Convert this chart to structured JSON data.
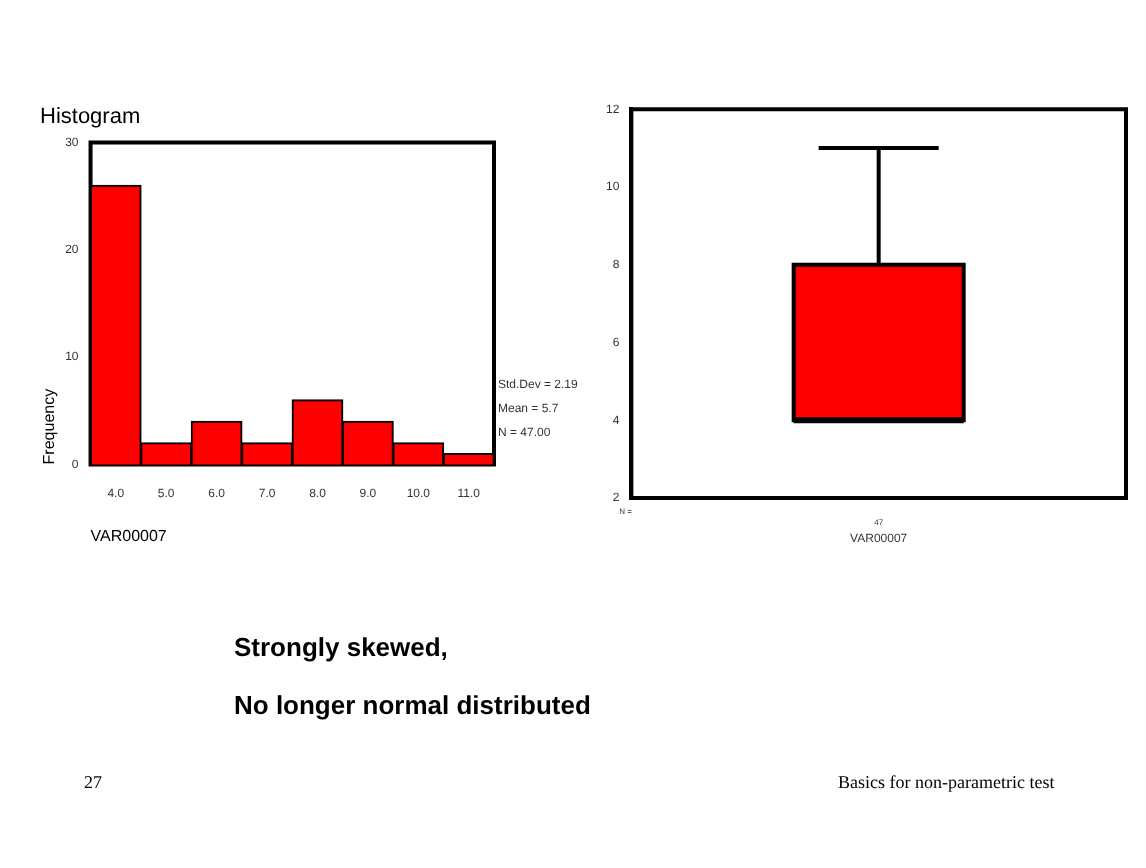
{
  "chart_data": [
    {
      "type": "histogram",
      "title": "Histogram",
      "xlabel": "VAR00007",
      "ylabel": "Frequency",
      "bins": [
        3.5,
        4.5,
        5.5,
        6.5,
        7.5,
        8.5,
        9.5,
        10.5,
        11.5
      ],
      "values": [
        26,
        2,
        4,
        2,
        6,
        4,
        2,
        1
      ],
      "color": "#ff0000",
      "xlim": [
        3.5,
        11.5
      ],
      "xticks": [
        {
          "value": 4,
          "label": "4.0"
        },
        {
          "value": 5,
          "label": "5.0"
        },
        {
          "value": 6,
          "label": "6.0"
        },
        {
          "value": 7,
          "label": "7.0"
        },
        {
          "value": 8,
          "label": "8.0"
        },
        {
          "value": 9,
          "label": "9.0"
        },
        {
          "value": 10,
          "label": "10.0"
        },
        {
          "value": 11,
          "label": "11.0"
        }
      ],
      "ylim": [
        0,
        30
      ],
      "yticks": [
        0,
        10,
        20,
        30
      ],
      "grid": false,
      "legend": false,
      "annotations": [
        "Std.Dev = 2.19",
        "Mean = 5.7",
        "N = 47.00"
      ]
    },
    {
      "type": "box",
      "xlabel": "VAR00007",
      "categories": [
        "47"
      ],
      "boxes": [
        {
          "low": 4,
          "q1": 4,
          "median": 4,
          "q3": 8,
          "high": 11
        }
      ],
      "color": "#ff0000",
      "ylim": [
        2,
        12
      ],
      "yticks": [
        2,
        4,
        6,
        8,
        10,
        12
      ],
      "grid": false,
      "legend": false,
      "annotations": [
        "N ="
      ]
    },
    {
      "type": "other",
      "annotations": [
        "Strongly skewed,",
        "No longer normal distributed",
        "27",
        "Basics for non-parametric test"
      ]
    }
  ]
}
